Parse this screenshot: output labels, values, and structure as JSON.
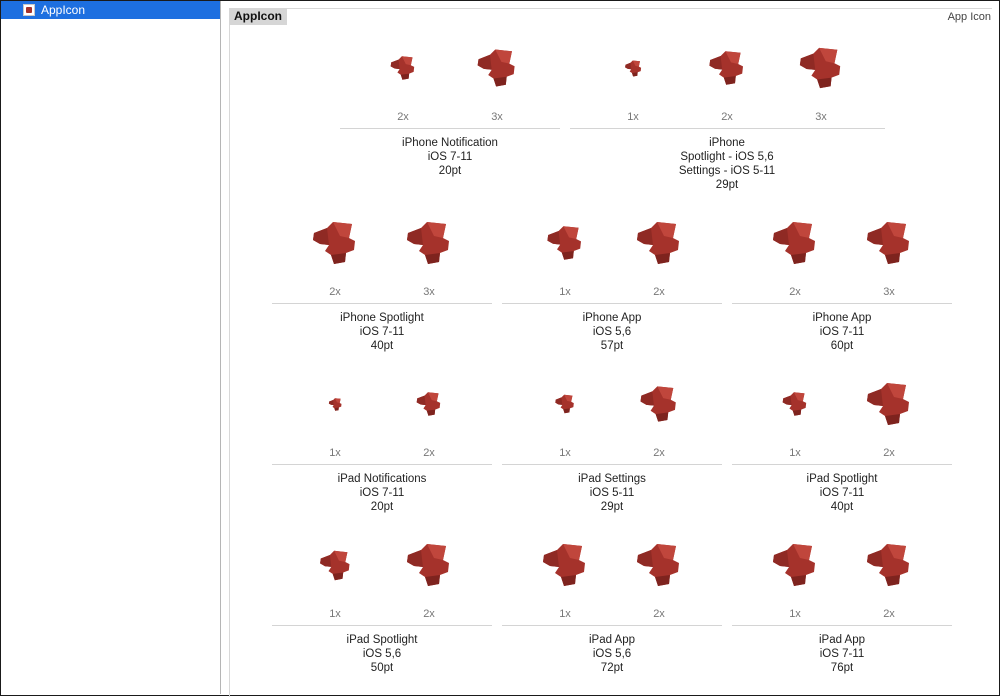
{
  "sidebar": {
    "items": [
      {
        "label": "AppIcon"
      }
    ]
  },
  "editor": {
    "set_title": "AppIcon",
    "set_type": "App Icon",
    "groups": [
      {
        "scales": [
          "2x",
          "3x"
        ],
        "caption": [
          "iPhone Notification",
          "iOS 7-11",
          "20pt"
        ]
      },
      {
        "scales": [
          "1x",
          "2x",
          "3x"
        ],
        "caption": [
          "iPhone",
          "Spotlight - iOS 5,6",
          "Settings - iOS 5-11",
          "29pt"
        ]
      },
      {
        "scales": [
          "2x",
          "3x"
        ],
        "caption": [
          "iPhone Spotlight",
          "iOS 7-11",
          "40pt"
        ]
      },
      {
        "scales": [
          "1x",
          "2x"
        ],
        "caption": [
          "iPhone App",
          "iOS 5,6",
          "57pt"
        ]
      },
      {
        "scales": [
          "2x",
          "3x"
        ],
        "caption": [
          "iPhone App",
          "iOS 7-11",
          "60pt"
        ]
      },
      {
        "scales": [
          "1x",
          "2x"
        ],
        "caption": [
          "iPad Notifications",
          "iOS 7-11",
          "20pt"
        ]
      },
      {
        "scales": [
          "1x",
          "2x"
        ],
        "caption": [
          "iPad Settings",
          "iOS 5-11",
          "29pt"
        ]
      },
      {
        "scales": [
          "1x",
          "2x"
        ],
        "caption": [
          "iPad Spotlight",
          "iOS 7-11",
          "40pt"
        ]
      },
      {
        "scales": [
          "1x",
          "2x"
        ],
        "caption": [
          "iPad Spotlight",
          "iOS 5,6",
          "50pt"
        ]
      },
      {
        "scales": [
          "1x",
          "2x"
        ],
        "caption": [
          "iPad App",
          "iOS 5,6",
          "72pt"
        ]
      },
      {
        "scales": [
          "1x",
          "2x"
        ],
        "caption": [
          "iPad App",
          "iOS 7-11",
          "76pt"
        ]
      }
    ],
    "icon_color": "#a5322b"
  }
}
